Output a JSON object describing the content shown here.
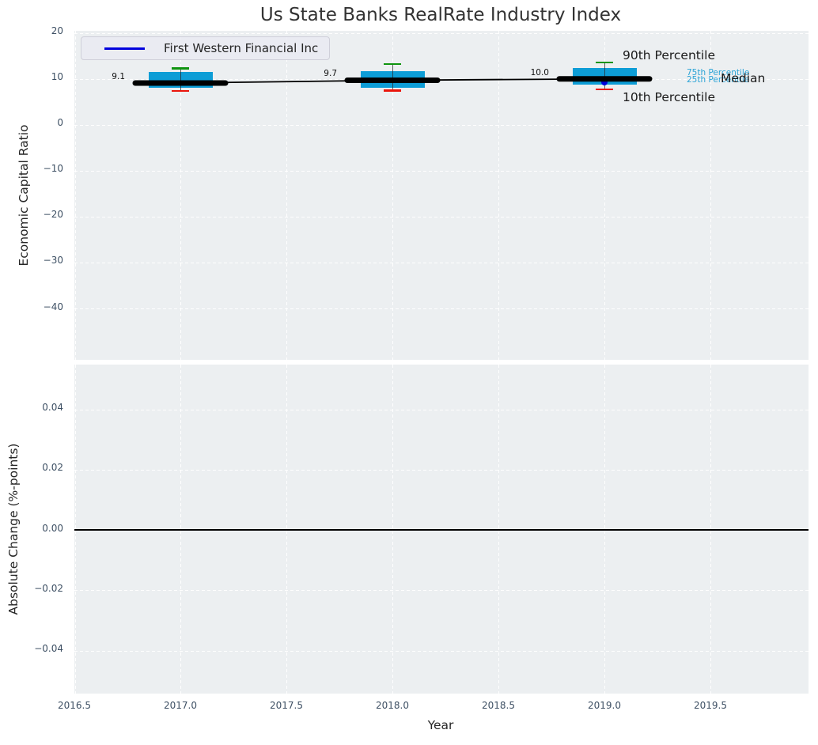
{
  "title": "Us State Banks RealRate Industry Index",
  "legend": {
    "label": "First Western Financial Inc"
  },
  "colors": {
    "box_fill": "#0d9dd6",
    "cap_top": "#0f940f",
    "cap_bottom": "#ea150c",
    "median_line": "#000000",
    "company": "#0000dd",
    "percentile_label_blue": "#2aa3d6",
    "annotation_dark": "#1a1a1a",
    "plot_bg": "#eceff1",
    "grid": "#ffffff",
    "tick_label": "#3d4f63",
    "axis_label": "#262626",
    "title": "#333333",
    "zero_line": "#000000"
  },
  "chart_data": {
    "type": "box",
    "title": "Us State Banks RealRate Industry Index",
    "xlabel": "Year",
    "legend": [
      "First Western Financial Inc"
    ],
    "grid": "white dashed on light-gray background",
    "xticks": [
      {
        "label": "2016.5",
        "value": 2016.5
      },
      {
        "label": "2017.0",
        "value": 2017.0
      },
      {
        "label": "2017.5",
        "value": 2017.5
      },
      {
        "label": "2018.0",
        "value": 2018.0
      },
      {
        "label": "2018.5",
        "value": 2018.5
      },
      {
        "label": "2019.0",
        "value": 2019.0
      },
      {
        "label": "2019.5",
        "value": 2019.5
      }
    ],
    "xlim": [
      2016.5,
      2019.97
    ],
    "top_panel": {
      "ylabel": "Economic Capital Ratio",
      "ylim": [
        -52,
        20.6
      ],
      "yticks": [
        {
          "label": "20",
          "value": 20
        },
        {
          "label": "10",
          "value": 10
        },
        {
          "label": "0",
          "value": 0
        },
        {
          "label": "−10",
          "value": -10
        },
        {
          "label": "−20",
          "value": -20
        },
        {
          "label": "−30",
          "value": -30
        },
        {
          "label": "−40",
          "value": -40
        }
      ],
      "boxes": [
        {
          "x": 2017,
          "p10": 7.4,
          "p25": 8.0,
          "median": 9.1,
          "p75": 11.5,
          "p90": 12.3,
          "median_label": "9.1"
        },
        {
          "x": 2018,
          "p10": 7.5,
          "p25": 8.1,
          "median": 9.7,
          "p75": 11.6,
          "p90": 13.2,
          "median_label": "9.7"
        },
        {
          "x": 2019,
          "p10": 7.7,
          "p25": 8.7,
          "median": 10.0,
          "p75": 12.3,
          "p90": 13.6,
          "median_label": "10.0"
        }
      ],
      "median_series": {
        "x": [
          2017,
          2018,
          2019
        ],
        "values": [
          9.1,
          9.7,
          10.0
        ]
      },
      "company_point": {
        "name": "First Western Financial Inc",
        "x": 2019,
        "value": 9.3
      },
      "annotations": [
        {
          "text": "90th Percentile",
          "role": "p90",
          "style": "dark"
        },
        {
          "text": "75th Percentile",
          "role": "p75",
          "style": "blue"
        },
        {
          "text": "25th Percentile",
          "role": "p25",
          "style": "blue"
        },
        {
          "text": "Median",
          "role": "median",
          "style": "dark"
        },
        {
          "text": "10th Percentile",
          "role": "p10",
          "style": "dark"
        }
      ]
    },
    "bottom_panel": {
      "ylabel": "Absolute Change (%-points)",
      "ylim": [
        -0.0548,
        0.0548
      ],
      "yticks": [
        {
          "label": "0.04",
          "value": 0.04
        },
        {
          "label": "0.02",
          "value": 0.02
        },
        {
          "label": "0.00",
          "value": 0.0
        },
        {
          "label": "−0.02",
          "value": -0.02
        },
        {
          "label": "−0.04",
          "value": -0.04
        }
      ],
      "zero_line": 0.0,
      "series": []
    }
  }
}
